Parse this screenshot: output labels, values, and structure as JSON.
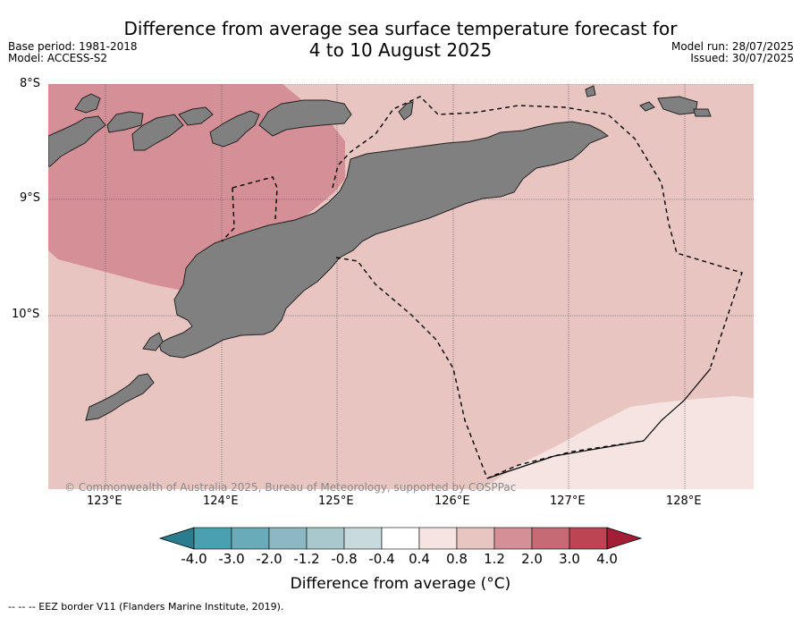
{
  "title": {
    "line1": "Difference from average sea surface temperature forecast for",
    "line2": "4 to 10 August 2025"
  },
  "meta_left": {
    "base_period": "Base period: 1981-2018",
    "model": "Model: ACCESS-S2"
  },
  "meta_right": {
    "model_run": "Model run: 28/07/2025",
    "issued": "Issued: 30/07/2025"
  },
  "axes": {
    "lat_labels": [
      "8°S",
      "9°S",
      "10°S"
    ],
    "lon_labels": [
      "123°E",
      "124°E",
      "125°E",
      "126°E",
      "127°E",
      "128°E"
    ]
  },
  "copyright": "© Commonwealth of Australia 2025, Bureau of Meteorology, supported by COSPPac",
  "colorbar": {
    "title": "Difference from average (°C)",
    "labels": [
      "-4.0",
      "-3.0",
      "-2.0",
      "-1.2",
      "-0.8",
      "-0.4",
      "0.4",
      "0.8",
      "1.2",
      "2.0",
      "3.0",
      "4.0"
    ],
    "colors": [
      "#2a7d8c",
      "#4aa0ae",
      "#6aabb9",
      "#8bb8c2",
      "#a9c8cd",
      "#c9dadd",
      "#ffffff",
      "#f5e4e2",
      "#e8c5c1",
      "#d58f96",
      "#c66a76",
      "#bc4453",
      "#a31d36"
    ]
  },
  "map_colors": {
    "anomaly_2_0": "#d58f96",
    "anomaly_1_2": "#e8c5c1",
    "anomaly_0_4": "#f5e4e2",
    "land": "#808080"
  },
  "footer": "--  --  -- EEZ border V11 (Flanders Marine Institute, 2019)."
}
